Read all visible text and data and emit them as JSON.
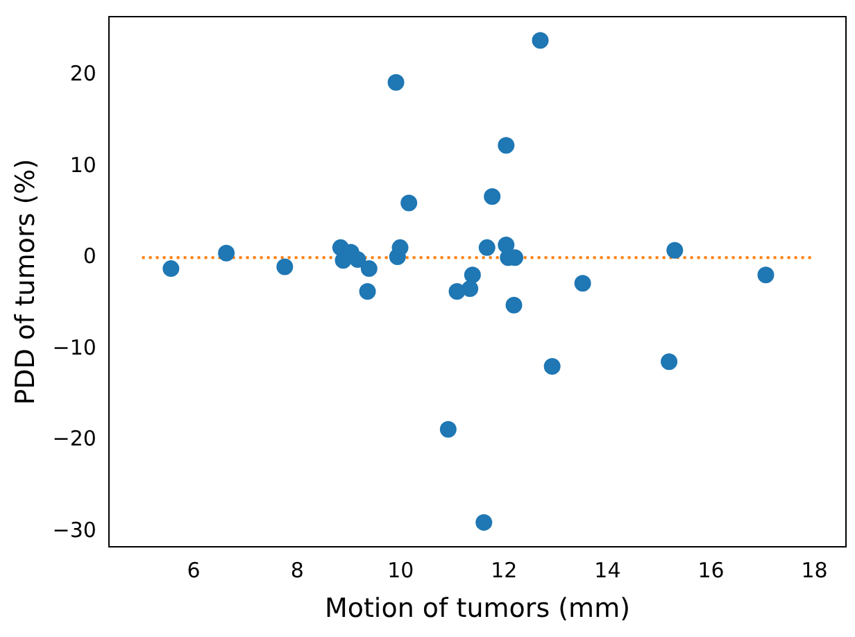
{
  "chart_data": {
    "type": "scatter",
    "xlabel": "Motion of tumors (mm)",
    "ylabel": "PDD of tumors (%)",
    "xlim": [
      4.36,
      18.61
    ],
    "ylim": [
      -31.7,
      26.4
    ],
    "xticks": [
      6,
      8,
      10,
      12,
      14,
      16,
      18
    ],
    "yticks": [
      {
        "value": -30,
        "label": "−30"
      },
      {
        "value": -20,
        "label": "−20"
      },
      {
        "value": -10,
        "label": "−10"
      },
      0,
      10,
      20
    ],
    "grid": false,
    "legend": false,
    "marker": "circle",
    "series": [
      {
        "color": "#1f77b4",
        "x": [
          5.56,
          6.63,
          7.76,
          8.84,
          8.89,
          9.04,
          9.17,
          9.39,
          9.36,
          9.91,
          9.94,
          9.99,
          10.16,
          10.92,
          11.09,
          11.34,
          11.39,
          11.61,
          11.67,
          11.77,
          12.04,
          12.04,
          12.08,
          12.21,
          12.19,
          12.7,
          12.93,
          13.52,
          15.19,
          15.3,
          17.06
        ],
        "values": [
          -1.2,
          0.5,
          -1.0,
          1.1,
          -0.3,
          0.6,
          -0.2,
          -1.2,
          -3.7,
          19.2,
          0.1,
          1.1,
          6.0,
          -18.8,
          -3.7,
          -3.4,
          -1.9,
          -29.0,
          1.1,
          6.7,
          12.3,
          1.4,
          0,
          0,
          -5.2,
          23.8,
          -11.9,
          -2.8,
          -11.4,
          0.8,
          -1.9
        ]
      },
      {
        "type": "line",
        "color": "#ff7f0e",
        "line_style": "dotted",
        "marker": "none",
        "x": [
          5,
          18
        ],
        "values": [
          0,
          0
        ]
      }
    ]
  }
}
